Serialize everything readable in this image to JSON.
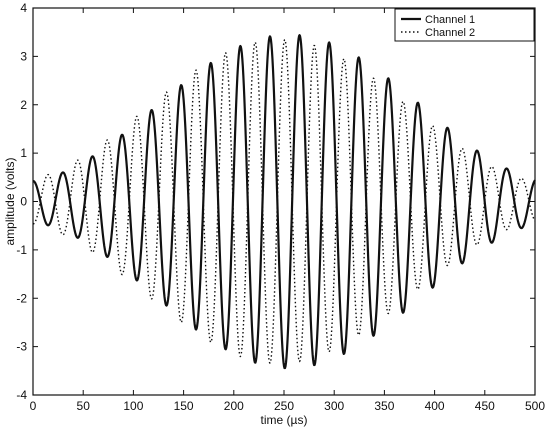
{
  "chart_data": {
    "type": "line",
    "title": "",
    "xlabel": "time (µs)",
    "ylabel": "amplitude (volts)",
    "xlim": [
      0,
      500
    ],
    "ylim": [
      -4,
      4
    ],
    "xticks": [
      0,
      50,
      100,
      150,
      200,
      250,
      300,
      350,
      400,
      450,
      500
    ],
    "yticks": [
      -4,
      -3,
      -2,
      -1,
      0,
      1,
      2,
      3,
      4
    ],
    "grid": false,
    "legend_position": "top-right",
    "series": [
      {
        "name": "Channel 1",
        "style": "solid",
        "color": "#111111",
        "model": "amplitude-modulated sinusoid",
        "peak_amplitude": 3.45,
        "edge_amplitude": 0.4,
        "period_us": 29.5,
        "envelope_center_us": 255
      },
      {
        "name": "Channel 2",
        "style": "dotted",
        "color": "#111111",
        "model": "amplitude-modulated sinusoid",
        "peak_amplitude": 3.35,
        "edge_amplitude": 0.4,
        "period_us": 29.5,
        "envelope_center_us": 245
      }
    ]
  }
}
